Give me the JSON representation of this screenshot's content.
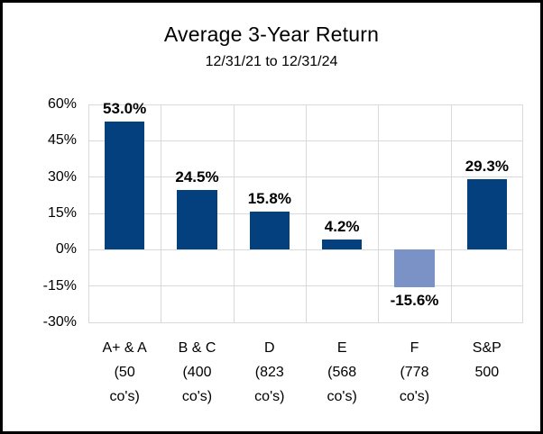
{
  "chart_data": {
    "type": "bar",
    "title": "Average 3-Year Return",
    "subtitle": "12/31/21 to 12/31/24",
    "categories": [
      [
        "A+ & A",
        "(50",
        "co's)"
      ],
      [
        "B & C",
        "(400",
        "co's)"
      ],
      [
        "D",
        "(823",
        "co's)"
      ],
      [
        "E",
        "(568",
        "co's)"
      ],
      [
        "F",
        "(778",
        "co's)"
      ],
      [
        "S&P",
        "500"
      ]
    ],
    "values": [
      53.0,
      24.5,
      15.8,
      4.2,
      -15.6,
      29.3
    ],
    "value_labels": [
      "53.0%",
      "24.5%",
      "15.8%",
      "4.2%",
      "-15.6%",
      "29.3%"
    ],
    "ylim": [
      -30,
      60
    ],
    "ytick_values": [
      60,
      45,
      30,
      15,
      0,
      -15,
      -30
    ],
    "ytick_labels": [
      "60%",
      "45%",
      "30%",
      "15%",
      "0%",
      "-15%",
      "-30%"
    ],
    "grid": true,
    "legend": "none",
    "colors": {
      "bar_positive": "#04407E",
      "bar_negative": "#7B92C7",
      "gridline": "#D9D9D9",
      "text": "#000000",
      "frame_border": "#000000"
    }
  }
}
